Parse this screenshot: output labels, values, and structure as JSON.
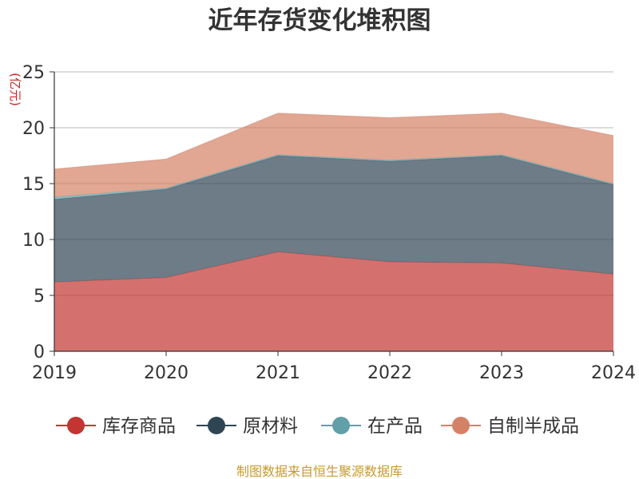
{
  "chart_data": {
    "type": "area",
    "stacked": true,
    "title": "近年存货变化堆积图",
    "ylabel": "(亿元)",
    "x": [
      "2019",
      "2020",
      "2021",
      "2022",
      "2023",
      "2024"
    ],
    "ylim": [
      0,
      25
    ],
    "yticks": [
      "0",
      "5",
      "10",
      "15",
      "20",
      "25"
    ],
    "grid": true,
    "legend_position": "bottom",
    "series": [
      {
        "name": "库存商品",
        "color": "#c23531",
        "values": [
          6.2,
          6.6,
          8.9,
          8.0,
          7.9,
          6.9
        ]
      },
      {
        "name": "原材料",
        "color": "#2f4554",
        "values": [
          7.4,
          7.9,
          8.6,
          9.0,
          9.6,
          8.0
        ]
      },
      {
        "name": "在产品",
        "color": "#61a0a8",
        "values": [
          0.2,
          0.1,
          0.1,
          0.1,
          0.1,
          0.1
        ]
      },
      {
        "name": "自制半成品",
        "color": "#d48265",
        "values": [
          2.5,
          2.6,
          3.7,
          3.8,
          3.7,
          4.3
        ]
      }
    ]
  },
  "source_note": "制图数据来自恒生聚源数据库"
}
